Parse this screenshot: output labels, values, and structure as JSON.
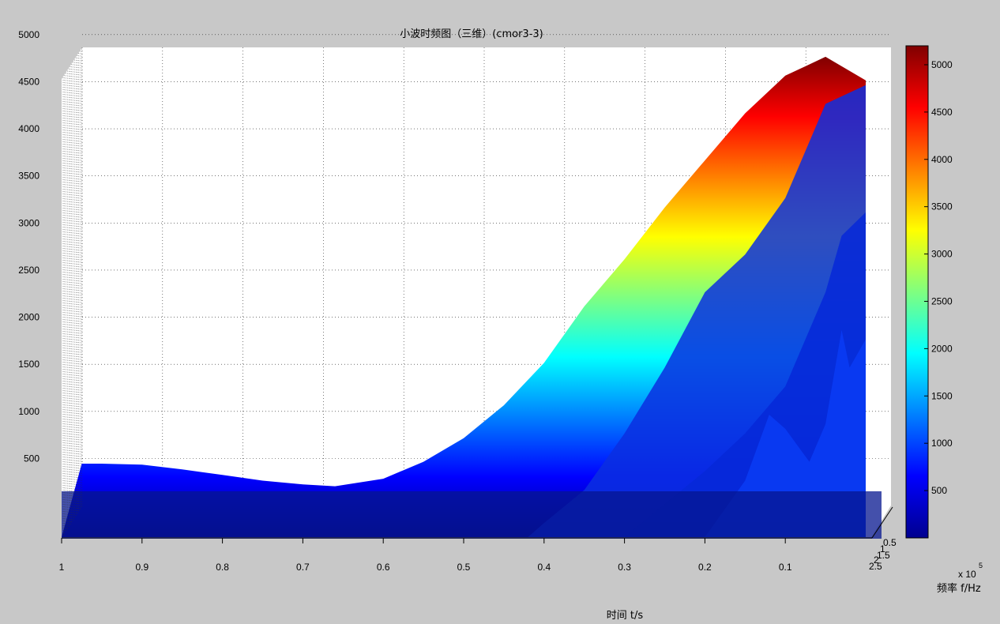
{
  "chart_data": {
    "type": "area",
    "title": "小波时频图（三维）(cmor3-3)",
    "xlabel": "时间 t/s",
    "depth_label": "频率 f/Hz",
    "depth_multiplier": "x 10",
    "depth_exponent": "5",
    "x_ticks": [
      "1",
      "0.9",
      "0.8",
      "0.7",
      "0.6",
      "0.5",
      "0.4",
      "0.3",
      "0.2",
      "0.1"
    ],
    "z_ticks": [
      "5000",
      "4500",
      "4000",
      "3500",
      "3000",
      "2500",
      "2000",
      "1500",
      "1000",
      "500"
    ],
    "depth_ticks": [
      "0.5",
      "1",
      "1.5",
      "2",
      "2.5"
    ],
    "colorbar_ticks": [
      "5000",
      "4500",
      "4000",
      "3500",
      "3000",
      "2500",
      "2000",
      "1500",
      "1000",
      "500"
    ],
    "x_range": [
      1,
      0
    ],
    "z_range": [
      0,
      5200
    ],
    "colormap": "jet",
    "grid": true,
    "series": [
      {
        "values": [
          [
            1.0,
            0
          ],
          [
            0.975,
            780
          ],
          [
            0.95,
            780
          ],
          [
            0.9,
            770
          ],
          [
            0.85,
            720
          ],
          [
            0.8,
            660
          ],
          [
            0.75,
            600
          ],
          [
            0.7,
            560
          ],
          [
            0.66,
            540
          ],
          [
            0.6,
            620
          ],
          [
            0.55,
            800
          ],
          [
            0.5,
            1050
          ],
          [
            0.45,
            1400
          ],
          [
            0.4,
            1850
          ],
          [
            0.35,
            2450
          ],
          [
            0.3,
            2950
          ],
          [
            0.25,
            3500
          ],
          [
            0.2,
            4000
          ],
          [
            0.15,
            4500
          ],
          [
            0.1,
            4900
          ],
          [
            0.05,
            5100
          ],
          [
            0.0,
            4850
          ]
        ]
      },
      {
        "values": [
          [
            0.42,
            0
          ],
          [
            0.4,
            150
          ],
          [
            0.35,
            500
          ],
          [
            0.3,
            1100
          ],
          [
            0.25,
            1800
          ],
          [
            0.2,
            2600
          ],
          [
            0.15,
            3000
          ],
          [
            0.1,
            3600
          ],
          [
            0.05,
            4600
          ],
          [
            0.0,
            4800
          ]
        ]
      },
      {
        "values": [
          [
            0.3,
            0
          ],
          [
            0.25,
            350
          ],
          [
            0.2,
            700
          ],
          [
            0.15,
            1100
          ],
          [
            0.1,
            1600
          ],
          [
            0.05,
            2600
          ],
          [
            0.03,
            3200
          ],
          [
            0.0,
            3450
          ]
        ]
      },
      {
        "values": [
          [
            0.2,
            0
          ],
          [
            0.15,
            600
          ],
          [
            0.12,
            1300
          ],
          [
            0.1,
            1150
          ],
          [
            0.07,
            800
          ],
          [
            0.05,
            1200
          ],
          [
            0.03,
            2200
          ],
          [
            0.02,
            1800
          ],
          [
            0.0,
            2100
          ]
        ]
      }
    ]
  }
}
